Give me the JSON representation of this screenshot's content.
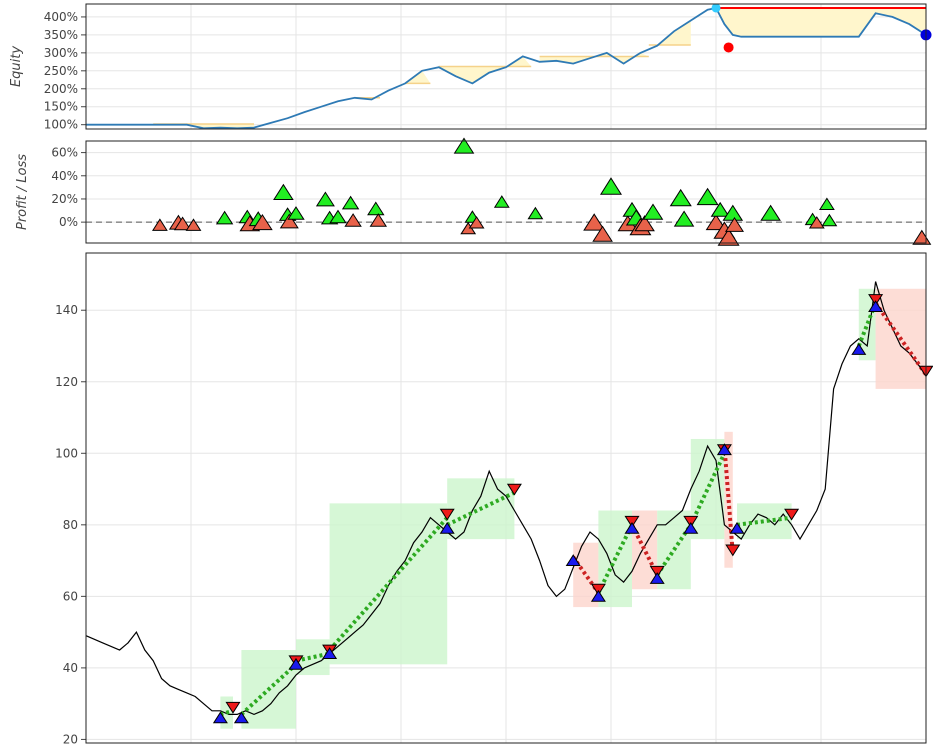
{
  "chart_data": [
    {
      "type": "line",
      "panel": "equity",
      "ylabel": "Equity",
      "yticks": [
        "400%",
        "350%",
        "300%",
        "250%",
        "200%",
        "150%",
        "100%"
      ],
      "ytick_values": [
        400,
        350,
        300,
        250,
        200,
        150,
        100
      ],
      "ylim": [
        88,
        436
      ],
      "xlim": [
        0,
        100
      ],
      "grid": true,
      "series": [
        {
          "color": "#2e7ab5",
          "x": [
            0,
            4,
            8,
            12,
            14,
            16,
            18,
            20,
            22,
            24,
            26,
            28,
            30,
            32,
            34,
            36,
            38,
            40,
            42,
            44,
            46,
            48,
            50,
            52,
            54,
            56,
            58,
            60,
            62,
            64,
            66,
            68,
            70,
            72,
            74,
            75,
            76,
            77,
            78,
            80,
            82,
            84,
            86,
            88,
            90,
            92,
            94,
            96,
            98,
            100
          ],
          "y": [
            100,
            100,
            100,
            100,
            90,
            92,
            90,
            92,
            105,
            118,
            135,
            150,
            165,
            175,
            170,
            195,
            215,
            250,
            260,
            235,
            215,
            245,
            260,
            290,
            275,
            278,
            270,
            285,
            300,
            270,
            300,
            320,
            360,
            390,
            420,
            425,
            380,
            350,
            345,
            345,
            345,
            345,
            345,
            345,
            345,
            345,
            410,
            400,
            380,
            350
          ]
        }
      ],
      "drawdown_segments": [
        {
          "x_start": 8,
          "x_end": 20,
          "peak": 102
        },
        {
          "x_start": 32,
          "x_end": 35,
          "peak": 175
        },
        {
          "x_start": 38,
          "x_end": 41,
          "peak": 215
        },
        {
          "x_start": 42,
          "x_end": 53,
          "peak": 262
        },
        {
          "x_start": 54,
          "x_end": 67,
          "peak": 290
        },
        {
          "x_start": 67,
          "x_end": 72,
          "peak": 322
        }
      ],
      "peak_marker": {
        "x": 75,
        "y": 425,
        "color": "#33ccff"
      },
      "max_drawdown_line": {
        "x_start": 75,
        "x_end": 100,
        "y": 425,
        "color": "#ff0000"
      },
      "max_drawdown_marker": {
        "x": 76.5,
        "y": 315,
        "color": "#ff0000"
      },
      "final_marker": {
        "x": 100,
        "y": 350,
        "color": "#0000dd"
      }
    },
    {
      "type": "scatter",
      "panel": "profit_loss",
      "ylabel": "Profit / Loss",
      "yticks": [
        "60%",
        "40%",
        "20%",
        "0%"
      ],
      "ytick_values": [
        60,
        40,
        20,
        0
      ],
      "ylim": [
        -18,
        70
      ],
      "xlim": [
        0,
        100
      ],
      "grid": true,
      "zero_line": true,
      "points": [
        {
          "x": 8.8,
          "y": -3,
          "size": 9,
          "win": false
        },
        {
          "x": 11,
          "y": -1,
          "size": 11,
          "win": false
        },
        {
          "x": 11.5,
          "y": -2,
          "size": 10,
          "win": false
        },
        {
          "x": 12.8,
          "y": -3,
          "size": 9,
          "win": false
        },
        {
          "x": 16.5,
          "y": 3,
          "size": 10,
          "win": true
        },
        {
          "x": 19.2,
          "y": 4,
          "size": 10,
          "win": true
        },
        {
          "x": 19.5,
          "y": -2,
          "size": 12,
          "win": false
        },
        {
          "x": 20.5,
          "y": 2,
          "size": 11,
          "win": true
        },
        {
          "x": 21,
          "y": -1,
          "size": 12,
          "win": false
        },
        {
          "x": 23.5,
          "y": 25,
          "size": 12,
          "win": true
        },
        {
          "x": 24,
          "y": 6,
          "size": 10,
          "win": true
        },
        {
          "x": 24.2,
          "y": 0,
          "size": 11,
          "win": false
        },
        {
          "x": 25,
          "y": 7,
          "size": 10,
          "win": true
        },
        {
          "x": 28.5,
          "y": 19,
          "size": 11,
          "win": true
        },
        {
          "x": 29,
          "y": 3,
          "size": 10,
          "win": true
        },
        {
          "x": 30,
          "y": 4,
          "size": 10,
          "win": true
        },
        {
          "x": 31.5,
          "y": 16,
          "size": 10,
          "win": true
        },
        {
          "x": 31.8,
          "y": 1,
          "size": 10,
          "win": false
        },
        {
          "x": 34.5,
          "y": 11,
          "size": 10,
          "win": true
        },
        {
          "x": 34.8,
          "y": 1,
          "size": 10,
          "win": false
        },
        {
          "x": 45,
          "y": 65,
          "size": 12,
          "win": true
        },
        {
          "x": 45.5,
          "y": -6,
          "size": 9,
          "win": false
        },
        {
          "x": 46,
          "y": 4,
          "size": 9,
          "win": true
        },
        {
          "x": 46.5,
          "y": -1,
          "size": 9,
          "win": false
        },
        {
          "x": 49.5,
          "y": 17,
          "size": 9,
          "win": true
        },
        {
          "x": 53.5,
          "y": 7,
          "size": 9,
          "win": true
        },
        {
          "x": 60.5,
          "y": -1,
          "size": 13,
          "win": false
        },
        {
          "x": 61.5,
          "y": -11,
          "size": 12,
          "win": false
        },
        {
          "x": 62.5,
          "y": 30,
          "size": 13,
          "win": true
        },
        {
          "x": 64.5,
          "y": -2,
          "size": 12,
          "win": false
        },
        {
          "x": 65,
          "y": 10,
          "size": 11,
          "win": true
        },
        {
          "x": 65.5,
          "y": 3,
          "size": 12,
          "win": true
        },
        {
          "x": 66,
          "y": -5,
          "size": 13,
          "win": false
        },
        {
          "x": 66.5,
          "y": -2,
          "size": 12,
          "win": false
        },
        {
          "x": 67.5,
          "y": 8,
          "size": 12,
          "win": true
        },
        {
          "x": 70.8,
          "y": 20,
          "size": 13,
          "win": true
        },
        {
          "x": 71.2,
          "y": 2,
          "size": 12,
          "win": true
        },
        {
          "x": 74,
          "y": 21,
          "size": 13,
          "win": true
        },
        {
          "x": 75,
          "y": -1,
          "size": 12,
          "win": false
        },
        {
          "x": 75.5,
          "y": 10,
          "size": 11,
          "win": true
        },
        {
          "x": 76,
          "y": -8,
          "size": 13,
          "win": false
        },
        {
          "x": 76.5,
          "y": -14,
          "size": 13,
          "win": false
        },
        {
          "x": 77,
          "y": 7,
          "size": 12,
          "win": true
        },
        {
          "x": 77.2,
          "y": -3,
          "size": 11,
          "win": false
        },
        {
          "x": 81.5,
          "y": 7,
          "size": 12,
          "win": true
        },
        {
          "x": 86.5,
          "y": 2,
          "size": 9,
          "win": true
        },
        {
          "x": 87,
          "y": -1,
          "size": 9,
          "win": false
        },
        {
          "x": 88.2,
          "y": 15,
          "size": 9,
          "win": true
        },
        {
          "x": 88.5,
          "y": 1,
          "size": 9,
          "win": true
        },
        {
          "x": 99.5,
          "y": -14,
          "size": 11,
          "win": false
        }
      ]
    },
    {
      "type": "line",
      "panel": "price",
      "yticks": [
        "140",
        "120",
        "100",
        "80",
        "60",
        "40",
        "20"
      ],
      "ytick_values": [
        140,
        120,
        100,
        80,
        60,
        40,
        20
      ],
      "ylim": [
        19,
        156
      ],
      "xlim": [
        0,
        100
      ],
      "grid": true,
      "series": [
        {
          "color": "#000000",
          "x": [
            0,
            2,
            4,
            5,
            6,
            7,
            8,
            9,
            10,
            11,
            12,
            13,
            14,
            15,
            16,
            17,
            18,
            19,
            20,
            21,
            22,
            23,
            24,
            25,
            26,
            27,
            28,
            29,
            30,
            31,
            32,
            33,
            34,
            35,
            36,
            37,
            38,
            39,
            40,
            41,
            42,
            43,
            44,
            45,
            46,
            47,
            48,
            49,
            50,
            51,
            52,
            53,
            54,
            55,
            56,
            57,
            58,
            59,
            60,
            61,
            62,
            63,
            64,
            65,
            66,
            67,
            68,
            69,
            70,
            71,
            72,
            73,
            74,
            75,
            76,
            77,
            78,
            79,
            80,
            81,
            82,
            83,
            84,
            85,
            86,
            87,
            88,
            89,
            90,
            91,
            92,
            93,
            94,
            95,
            96,
            97,
            98,
            99,
            100
          ],
          "y": [
            49,
            47,
            45,
            47,
            50,
            45,
            42,
            37,
            35,
            34,
            33,
            32,
            30,
            28,
            28,
            27,
            27,
            28,
            27,
            28,
            30,
            33,
            35,
            38,
            40,
            41,
            42,
            44,
            46,
            48,
            50,
            52,
            55,
            58,
            63,
            67,
            70,
            75,
            78,
            82,
            80,
            78,
            76,
            78,
            84,
            88,
            95,
            90,
            88,
            84,
            80,
            76,
            70,
            63,
            60,
            62,
            68,
            74,
            78,
            76,
            72,
            66,
            64,
            67,
            72,
            76,
            80,
            80,
            82,
            84,
            90,
            95,
            102,
            98,
            80,
            78,
            76,
            80,
            83,
            82,
            80,
            83,
            80,
            76,
            80,
            84,
            90,
            118,
            125,
            130,
            132,
            130,
            148,
            140,
            135,
            130,
            128,
            125,
            122
          ]
        }
      ],
      "trades": [
        {
          "x_start": 16,
          "y_start": 27,
          "x_end": 17.5,
          "y_end": 28,
          "win": true
        },
        {
          "x_start": 18.5,
          "y_start": 27,
          "x_end": 25,
          "y_end": 41,
          "win": true
        },
        {
          "x_start": 25,
          "y_start": 42,
          "x_end": 29,
          "y_end": 44,
          "win": true
        },
        {
          "x_start": 29,
          "y_start": 45,
          "x_end": 43,
          "y_end": 82,
          "win": true
        },
        {
          "x_start": 43,
          "y_start": 80,
          "x_end": 51,
          "y_end": 89,
          "win": true
        },
        {
          "x_start": 58,
          "y_start": 71,
          "x_end": 61,
          "y_end": 61,
          "win": false
        },
        {
          "x_start": 61,
          "y_start": 61,
          "x_end": 65,
          "y_end": 80,
          "win": true
        },
        {
          "x_start": 65,
          "y_start": 80,
          "x_end": 68,
          "y_end": 66,
          "win": false
        },
        {
          "x_start": 68,
          "y_start": 66,
          "x_end": 72,
          "y_end": 80,
          "win": true
        },
        {
          "x_start": 72,
          "y_start": 80,
          "x_end": 76,
          "y_end": 100,
          "win": true
        },
        {
          "x_start": 76,
          "y_start": 102,
          "x_end": 77,
          "y_end": 72,
          "win": false
        },
        {
          "x_start": 77.5,
          "y_start": 80,
          "x_end": 84,
          "y_end": 82,
          "win": true
        },
        {
          "x_start": 92,
          "y_start": 130,
          "x_end": 94,
          "y_end": 142,
          "win": true
        },
        {
          "x_start": 94,
          "y_start": 142,
          "x_end": 100,
          "y_end": 122,
          "win": false
        }
      ]
    }
  ]
}
